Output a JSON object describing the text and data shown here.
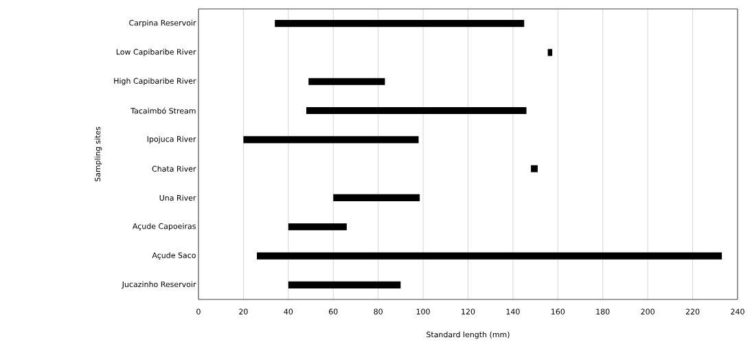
{
  "chart_data": {
    "type": "bar",
    "orientation": "horizontal",
    "xlabel": "Standard length (mm)",
    "ylabel": "Sampling sites",
    "categories": [
      "Carpina Reservoir",
      "Low Capibaribe River",
      "High Capibaribe River",
      "Tacaimbó Stream",
      "Ipojuca River",
      "Chata River",
      "Una River",
      "Açude Capoeiras",
      "Açude Saco",
      "Jucazinho Reservoir"
    ],
    "base": [
      34,
      155.5,
      49,
      48,
      20,
      148,
      60,
      40,
      26,
      40
    ],
    "values": [
      111,
      2,
      34,
      98,
      78,
      3,
      38.5,
      26,
      207,
      50
    ],
    "color": "#000000",
    "xlim": [
      0,
      240
    ],
    "xticks": [
      0,
      20,
      40,
      60,
      80,
      100,
      120,
      140,
      160,
      180,
      200,
      220,
      240
    ],
    "grid": "x"
  }
}
